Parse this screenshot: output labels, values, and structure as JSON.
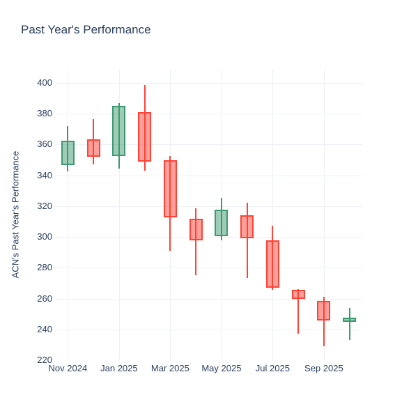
{
  "title": "Past Year's Performance",
  "y_axis_title": "ACN's Past Year's Performance",
  "colors": {
    "text": "#2a3f5f",
    "grid": "#ebf0f8",
    "background": "#ffffff",
    "up_line": "#3D9970",
    "up_fill_rgba": "rgba(61,153,112,0.5)",
    "down_line": "#FF4136",
    "down_fill_rgba": "rgba(255,65,54,0.5)"
  },
  "chart_data": {
    "type": "candlestick",
    "title": "Past Year's Performance",
    "xlabel": "",
    "ylabel": "ACN's Past Year's Performance",
    "x": [
      "Nov 2024",
      "Dec 2024",
      "Jan 2025",
      "Feb 2025",
      "Mar 2025",
      "Apr 2025",
      "May 2025",
      "Jun 2025",
      "Jul 2025",
      "Aug 2025",
      "Sep 2025",
      "Oct 2025"
    ],
    "series": [
      {
        "name": "ACN",
        "open": [
          346.5,
          363.5,
          352.5,
          381,
          350,
          312,
          300.5,
          314,
          298,
          265.5,
          258.5,
          245
        ],
        "high": [
          372,
          376.5,
          387,
          398.5,
          352.5,
          318.5,
          325.5,
          322,
          307.5,
          266,
          261,
          254
        ],
        "low": [
          342.5,
          347,
          344.5,
          343,
          291,
          275,
          298,
          273.5,
          265.5,
          237,
          229,
          233
        ],
        "close": [
          362.5,
          352,
          385,
          349,
          312.5,
          298,
          317.5,
          299,
          267,
          260,
          246,
          247.5
        ]
      }
    ],
    "ylim": [
      220,
      408.6
    ],
    "y_ticks": [
      220,
      240,
      260,
      280,
      300,
      320,
      340,
      360,
      380,
      400
    ],
    "x_tick_labels": [
      "Nov 2024",
      "Jan 2025",
      "Mar 2025",
      "May 2025",
      "Jul 2025",
      "Sep 2025"
    ],
    "x_tick_month_indices": [
      0,
      2,
      4,
      6,
      8,
      10
    ],
    "grid": true,
    "legend": false
  }
}
